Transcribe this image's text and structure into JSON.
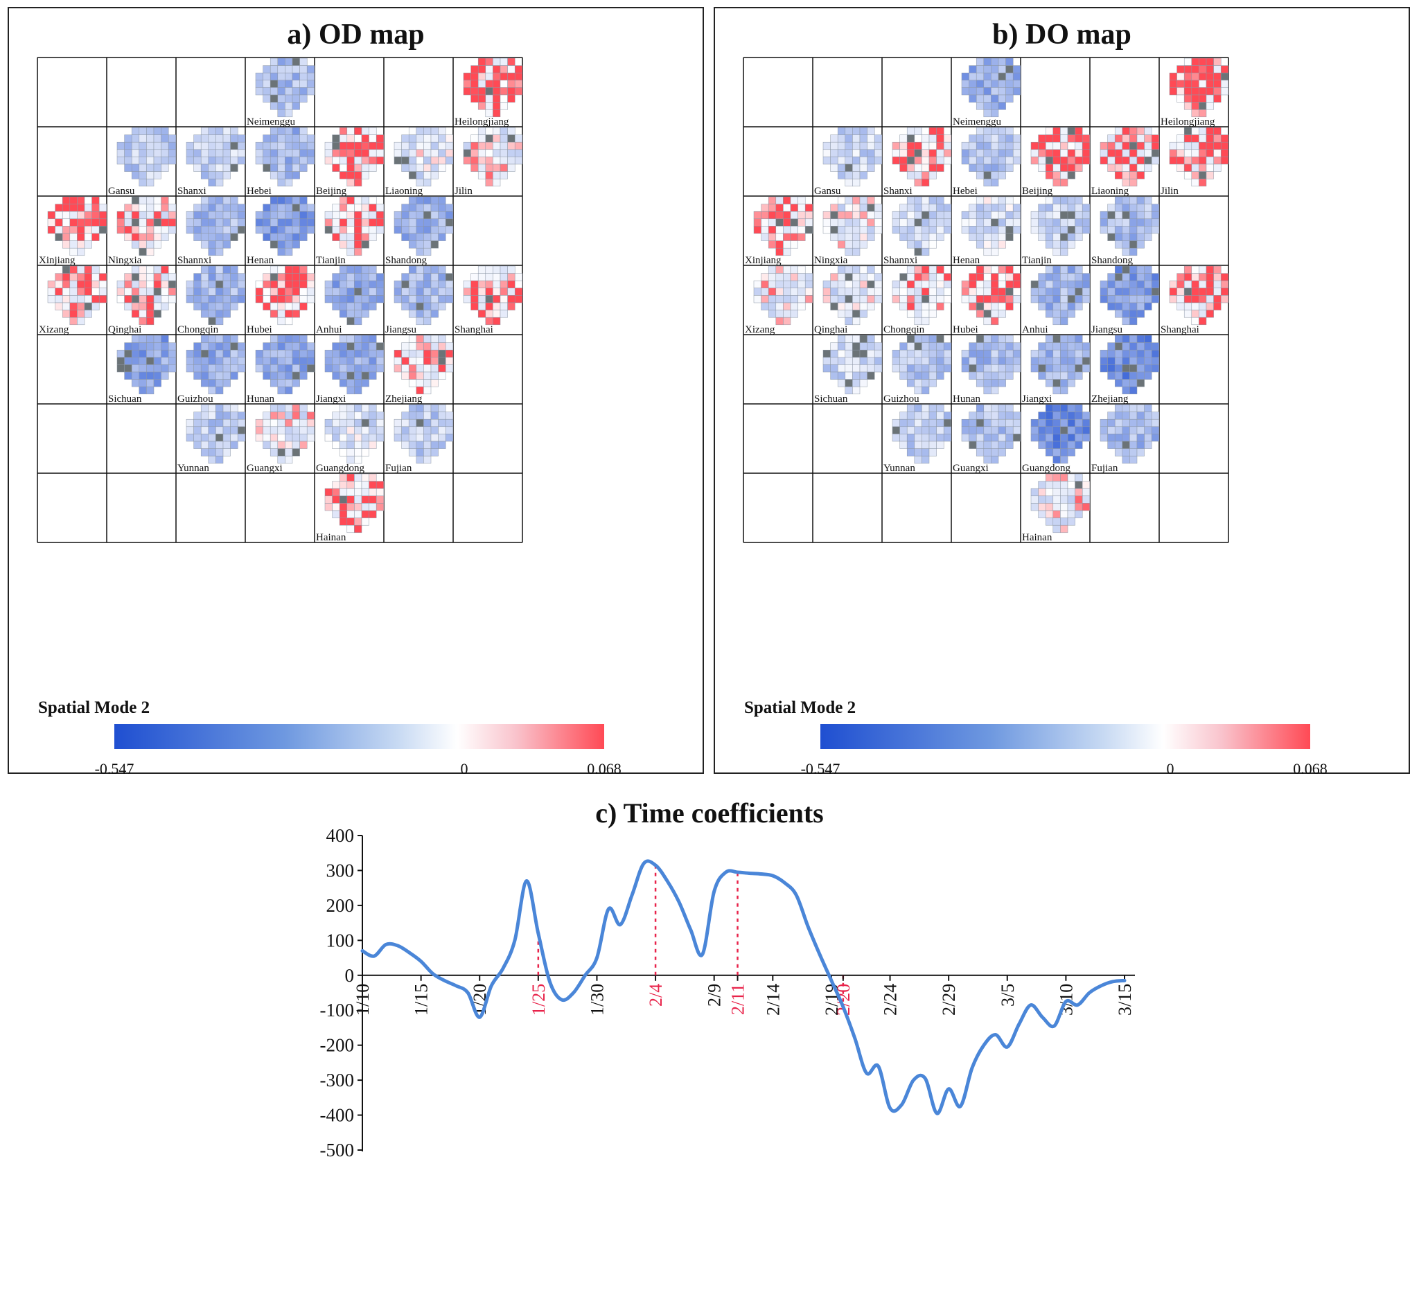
{
  "panels": [
    {
      "key": "od",
      "title": "a) OD map",
      "legend_label": "Spatial Mode 2",
      "scale": {
        "min_label": "-0.547",
        "mid_label": "0",
        "max_label": "0.068"
      }
    },
    {
      "key": "do",
      "title": "b) DO map",
      "legend_label": "Spatial Mode 2",
      "scale": {
        "min_label": "-0.547",
        "mid_label": "0",
        "max_label": "0.068"
      }
    }
  ],
  "provinces": [
    {
      "name": "Neimenggu",
      "row": 0,
      "col": 3,
      "od": -0.2,
      "do": -0.25
    },
    {
      "name": "Heilongjiang",
      "row": 0,
      "col": 6,
      "od": 0.03,
      "do": 0.04
    },
    {
      "name": "Gansu",
      "row": 1,
      "col": 1,
      "od": -0.15,
      "do": -0.12
    },
    {
      "name": "Shanxi",
      "row": 1,
      "col": 2,
      "od": -0.15,
      "do": 0.01
    },
    {
      "name": "Hebei",
      "row": 1,
      "col": 3,
      "od": -0.22,
      "do": -0.18
    },
    {
      "name": "Beijing",
      "row": 1,
      "col": 4,
      "od": 0.05,
      "do": 0.06
    },
    {
      "name": "Liaoning",
      "row": 1,
      "col": 5,
      "od": -0.08,
      "do": 0.01
    },
    {
      "name": "Jilin",
      "row": 1,
      "col": 6,
      "od": -0.05,
      "do": 0.02
    },
    {
      "name": "Xinjiang",
      "row": 2,
      "col": 0,
      "od": 0.04,
      "do": 0.02
    },
    {
      "name": "Ningxia",
      "row": 2,
      "col": 1,
      "od": -0.02,
      "do": -0.06
    },
    {
      "name": "Shannxi",
      "row": 2,
      "col": 2,
      "od": -0.2,
      "do": -0.1
    },
    {
      "name": "Henan",
      "row": 2,
      "col": 3,
      "od": -0.3,
      "do": -0.1
    },
    {
      "name": "Tianjin",
      "row": 2,
      "col": 4,
      "od": 0.03,
      "do": -0.12
    },
    {
      "name": "Shandong",
      "row": 2,
      "col": 5,
      "od": -0.25,
      "do": -0.2
    },
    {
      "name": "Xizang",
      "row": 3,
      "col": 0,
      "od": 0.01,
      "do": -0.05
    },
    {
      "name": "Qinghai",
      "row": 3,
      "col": 1,
      "od": -0.02,
      "do": -0.08
    },
    {
      "name": "Chongqin",
      "row": 3,
      "col": 2,
      "od": -0.22,
      "do": 0.0
    },
    {
      "name": "Hubei",
      "row": 3,
      "col": 3,
      "od": 0.05,
      "do": 0.04
    },
    {
      "name": "Anhui",
      "row": 3,
      "col": 4,
      "od": -0.25,
      "do": -0.22
    },
    {
      "name": "Jiangsu",
      "row": 3,
      "col": 5,
      "od": -0.2,
      "do": -0.3
    },
    {
      "name": "Shanghai",
      "row": 3,
      "col": 6,
      "od": 0.02,
      "do": 0.03
    },
    {
      "name": "Sichuan",
      "row": 4,
      "col": 1,
      "od": -0.28,
      "do": -0.12
    },
    {
      "name": "Guizhou",
      "row": 4,
      "col": 2,
      "od": -0.25,
      "do": -0.18
    },
    {
      "name": "Hunan",
      "row": 4,
      "col": 3,
      "od": -0.25,
      "do": -0.2
    },
    {
      "name": "Jiangxi",
      "row": 4,
      "col": 4,
      "od": -0.25,
      "do": -0.22
    },
    {
      "name": "Zhejiang",
      "row": 4,
      "col": 5,
      "od": 0.0,
      "do": -0.35
    },
    {
      "name": "Yunnan",
      "row": 5,
      "col": 2,
      "od": -0.15,
      "do": -0.15
    },
    {
      "name": "Guangxi",
      "row": 5,
      "col": 3,
      "od": -0.05,
      "do": -0.18
    },
    {
      "name": "Guangdong",
      "row": 5,
      "col": 4,
      "od": -0.08,
      "do": -0.35
    },
    {
      "name": "Fujian",
      "row": 5,
      "col": 5,
      "od": -0.15,
      "do": -0.22
    },
    {
      "name": "Hainan",
      "row": 6,
      "col": 4,
      "od": 0.03,
      "do": -0.05
    }
  ],
  "chart_data": {
    "type": "line",
    "title": "c) Time coefficients",
    "ylim": [
      -500,
      400
    ],
    "yticks": [
      400,
      300,
      200,
      100,
      0,
      -100,
      -200,
      -300,
      -400,
      -500
    ],
    "xtick_labels": [
      {
        "label": "1/10",
        "day": 0,
        "highlight": false
      },
      {
        "label": "1/15",
        "day": 5,
        "highlight": false
      },
      {
        "label": "1/20",
        "day": 10,
        "highlight": false
      },
      {
        "label": "1/25",
        "day": 15,
        "highlight": true
      },
      {
        "label": "1/30",
        "day": 20,
        "highlight": false
      },
      {
        "label": "2/4",
        "day": 25,
        "highlight": true
      },
      {
        "label": "2/9",
        "day": 30,
        "highlight": false
      },
      {
        "label": "2/11",
        "day": 32,
        "highlight": true
      },
      {
        "label": "2/14",
        "day": 35,
        "highlight": false
      },
      {
        "label": "2/19",
        "day": 40,
        "highlight": false
      },
      {
        "label": "2/20",
        "day": 41,
        "highlight": true
      },
      {
        "label": "2/24",
        "day": 45,
        "highlight": false
      },
      {
        "label": "2/29",
        "day": 50,
        "highlight": false
      },
      {
        "label": "3/5",
        "day": 55,
        "highlight": false
      },
      {
        "label": "3/10",
        "day": 60,
        "highlight": false
      },
      {
        "label": "3/15",
        "day": 65,
        "highlight": false
      }
    ],
    "series": [
      {
        "name": "Time coefficients",
        "color": "#4a86d8",
        "x": [
          0,
          1,
          2,
          3,
          4,
          5,
          6,
          7,
          8,
          9,
          10,
          11,
          12,
          13,
          14,
          15,
          16,
          17,
          18,
          19,
          20,
          21,
          22,
          23,
          24,
          25,
          26,
          27,
          28,
          29,
          30,
          31,
          32,
          33,
          34,
          35,
          36,
          37,
          38,
          39,
          40,
          41,
          42,
          43,
          44,
          45,
          46,
          47,
          48,
          49,
          50,
          51,
          52,
          53,
          54,
          55,
          56,
          57,
          58,
          59,
          60,
          61,
          62,
          63,
          64,
          65
        ],
        "y": [
          70,
          55,
          88,
          85,
          65,
          40,
          5,
          -15,
          -30,
          -50,
          -120,
          -30,
          20,
          100,
          270,
          120,
          -20,
          -70,
          -50,
          0,
          50,
          190,
          145,
          230,
          320,
          315,
          270,
          210,
          130,
          60,
          240,
          295,
          295,
          292,
          290,
          285,
          265,
          230,
          140,
          60,
          -15,
          -90,
          -180,
          -280,
          -260,
          -380,
          -370,
          -300,
          -295,
          -395,
          -325,
          -375,
          -265,
          -200,
          -170,
          -205,
          -140,
          -85,
          -120,
          -145,
          -75,
          -85,
          -50,
          -30,
          -18,
          -15
        ]
      }
    ],
    "highlights": [
      {
        "label": "1/25",
        "day": 15
      },
      {
        "label": "2/4",
        "day": 25
      },
      {
        "label": "2/11",
        "day": 32
      },
      {
        "label": "2/20",
        "day": 41
      }
    ]
  }
}
